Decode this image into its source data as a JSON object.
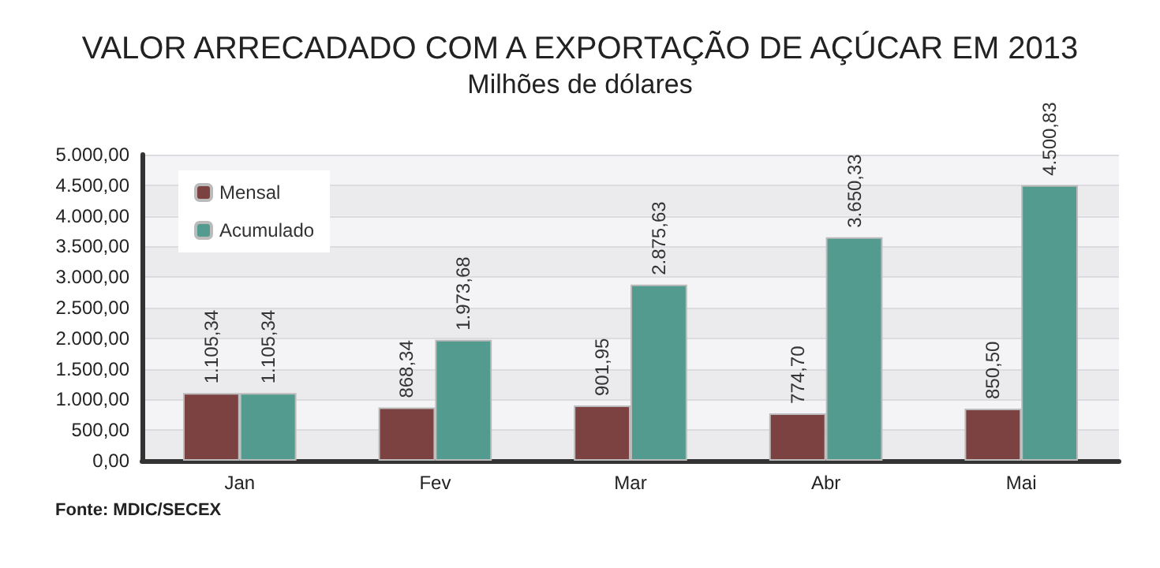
{
  "chart_data": {
    "type": "bar",
    "title": "VALOR ARRECADADO COM A EXPORTAÇÃO DE AÇÚCAR EM 2013",
    "subtitle": "Milhões de dólares",
    "categories": [
      "Jan",
      "Fev",
      "Mar",
      "Abr",
      "Mai"
    ],
    "series": [
      {
        "name": "Mensal",
        "color": "#7b4241",
        "values": [
          1105.34,
          868.34,
          901.95,
          774.7,
          850.5
        ],
        "value_labels": [
          "1.105,34",
          "868,34",
          "901,95",
          "774,70",
          "850,50"
        ]
      },
      {
        "name": "Acumulado",
        "color": "#529b8e",
        "values": [
          1105.34,
          1973.68,
          2875.63,
          3650.33,
          4500.83
        ],
        "value_labels": [
          "1.105,34",
          "1.973,68",
          "2.875,63",
          "3.650,33",
          "4.500,83"
        ]
      }
    ],
    "ylim": [
      0,
      5000
    ],
    "yticks": [
      {
        "value": 0,
        "label": "0,00"
      },
      {
        "value": 500,
        "label": "500,00"
      },
      {
        "value": 1000,
        "label": "1.000,00"
      },
      {
        "value": 1500,
        "label": "1.500,00"
      },
      {
        "value": 2000,
        "label": "2.000,00"
      },
      {
        "value": 2500,
        "label": "2.500,00"
      },
      {
        "value": 3000,
        "label": "3.000,00"
      },
      {
        "value": 3500,
        "label": "3.500,00"
      },
      {
        "value": 4000,
        "label": "4.000,00"
      },
      {
        "value": 4500,
        "label": "4.500,00"
      },
      {
        "value": 5000,
        "label": "5.000,00"
      }
    ],
    "grid": "y",
    "legend": "top left",
    "annotations": [
      "Fonte: MDIC/SECEX"
    ]
  }
}
